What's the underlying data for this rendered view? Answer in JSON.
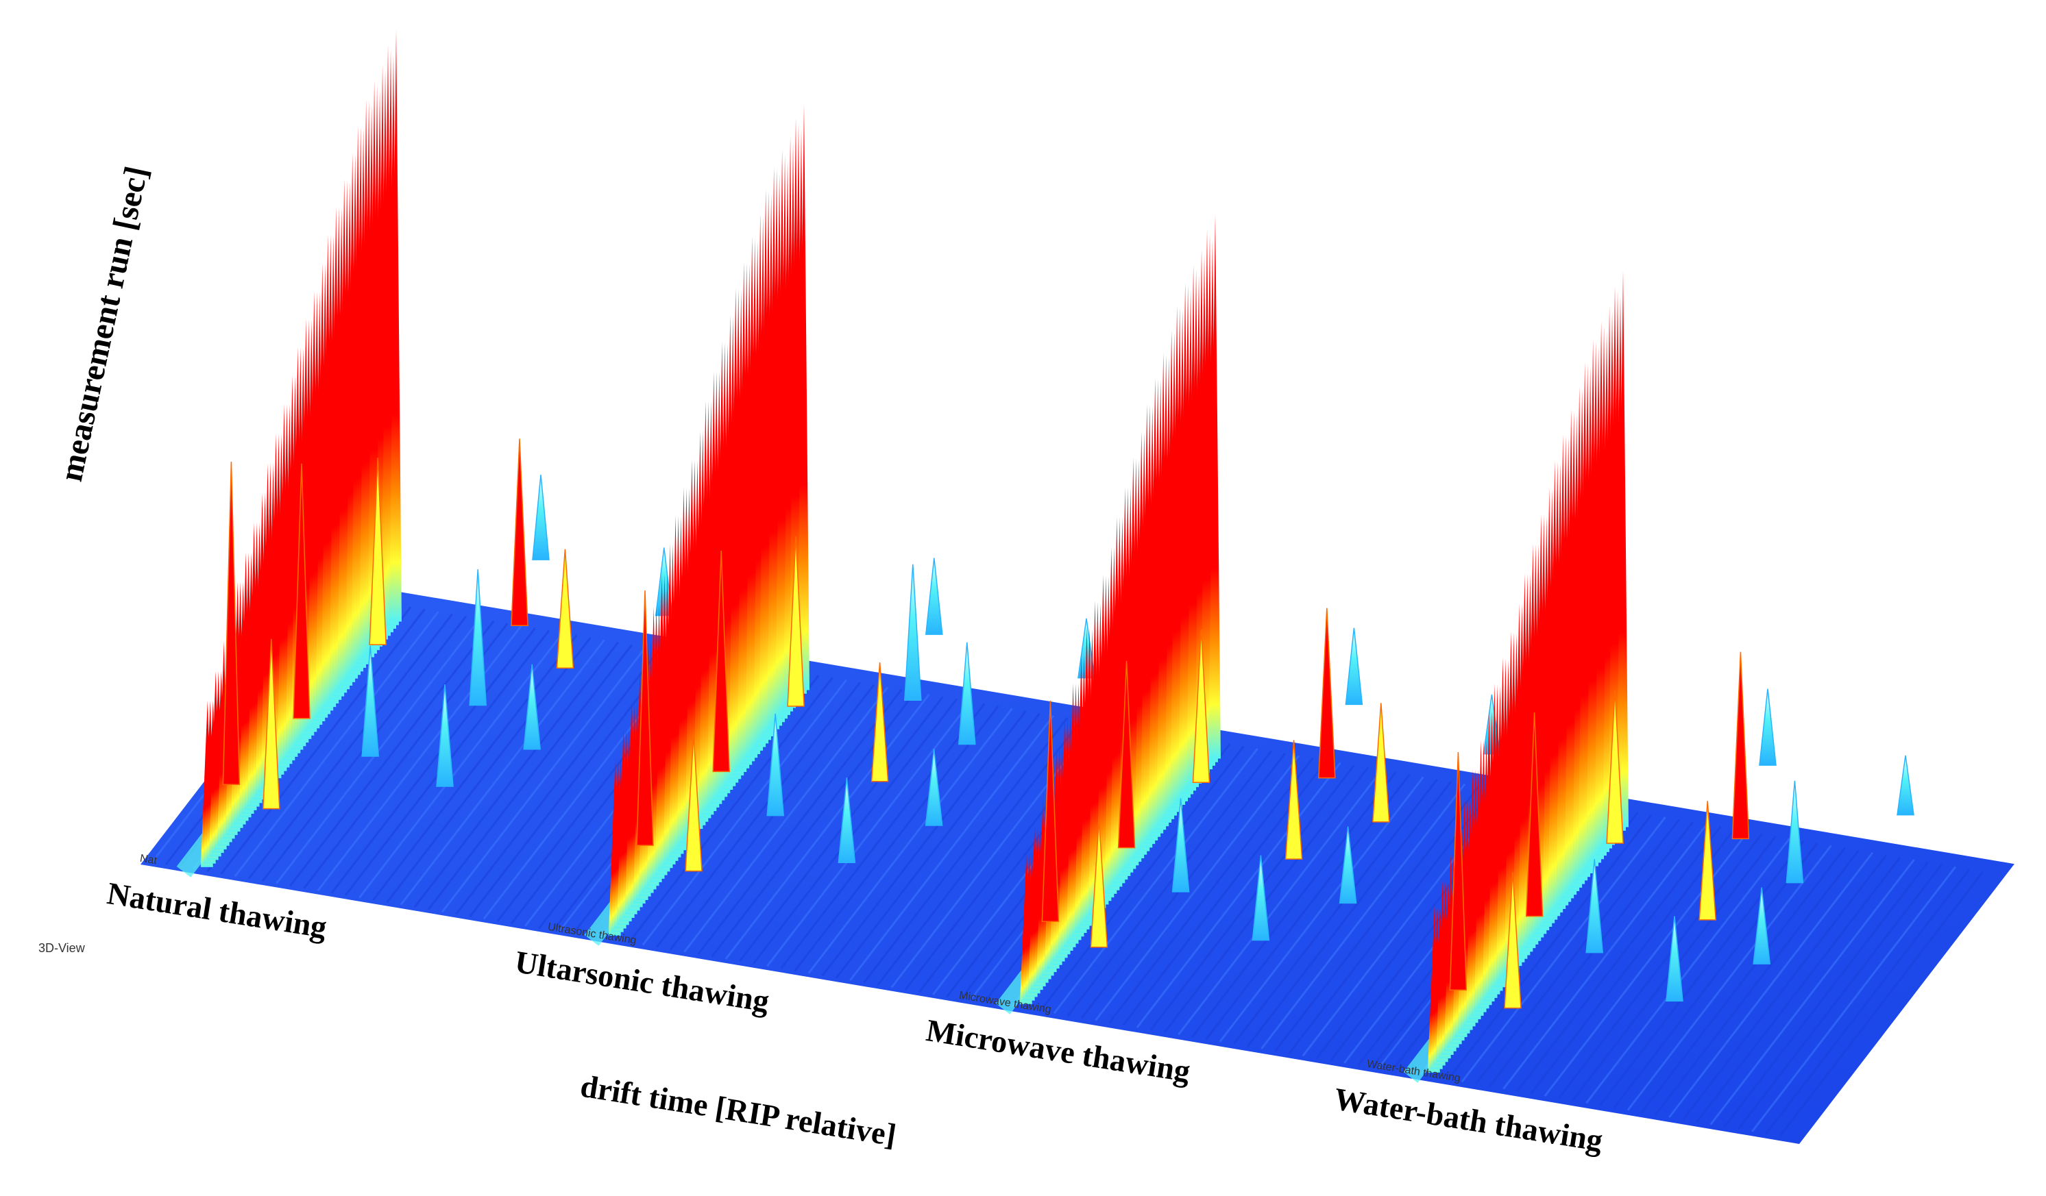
{
  "chart_data": {
    "type": "3d-surface",
    "view_label": "3D-View",
    "xlabel": "drift time [RIP relative]",
    "ylabel": "measurement run [sec]",
    "colors": {
      "base": "#1e4ff0",
      "low": "#28b4ff",
      "mid": "#54f2f6",
      "high": "#ffff33",
      "peak": "#ff0000"
    },
    "samples": [
      {
        "name": "Natural thawing",
        "small_label": "Nat",
        "rip_heights": [
          0.28,
          0.4,
          0.52,
          0.64,
          0.75,
          0.86,
          0.96,
          1.0
        ],
        "peaks": [
          {
            "drift": 0.06,
            "run": 0.22,
            "h": 0.38,
            "level": "peak"
          },
          {
            "drift": 0.1,
            "run": 0.4,
            "h": 0.3,
            "level": "peak"
          },
          {
            "drift": 0.14,
            "run": 0.6,
            "h": 0.22,
            "level": "high"
          },
          {
            "drift": 0.18,
            "run": 0.18,
            "h": 0.2,
            "level": "high"
          },
          {
            "drift": 0.4,
            "run": 0.7,
            "h": 0.22,
            "level": "peak"
          },
          {
            "drift": 0.44,
            "run": 0.5,
            "h": 0.16,
            "level": "mid"
          },
          {
            "drift": 0.5,
            "run": 0.3,
            "h": 0.12,
            "level": "mid"
          },
          {
            "drift": 0.56,
            "run": 0.62,
            "h": 0.14,
            "level": "high"
          },
          {
            "drift": 0.62,
            "run": 0.42,
            "h": 0.1,
            "level": "mid"
          },
          {
            "drift": 0.68,
            "run": 0.78,
            "h": 0.08,
            "level": "mid"
          },
          {
            "drift": 0.34,
            "run": 0.86,
            "h": 0.1,
            "level": "mid"
          },
          {
            "drift": 0.3,
            "run": 0.34,
            "h": 0.13,
            "level": "mid"
          }
        ]
      },
      {
        "name": "Ultarsonic thawing",
        "small_label": "Ultrasonic thawing",
        "rip_heights": [
          0.3,
          0.42,
          0.55,
          0.66,
          0.78,
          0.88,
          0.96,
          0.99
        ],
        "peaks": [
          {
            "drift": 0.06,
            "run": 0.24,
            "h": 0.3,
            "level": "peak"
          },
          {
            "drift": 0.1,
            "run": 0.44,
            "h": 0.26,
            "level": "peak"
          },
          {
            "drift": 0.15,
            "run": 0.62,
            "h": 0.2,
            "level": "high"
          },
          {
            "drift": 0.2,
            "run": 0.2,
            "h": 0.16,
            "level": "high"
          },
          {
            "drift": 0.38,
            "run": 0.68,
            "h": 0.16,
            "level": "mid"
          },
          {
            "drift": 0.44,
            "run": 0.48,
            "h": 0.14,
            "level": "high"
          },
          {
            "drift": 0.5,
            "run": 0.28,
            "h": 0.1,
            "level": "mid"
          },
          {
            "drift": 0.56,
            "run": 0.6,
            "h": 0.12,
            "level": "mid"
          },
          {
            "drift": 0.62,
            "run": 0.4,
            "h": 0.09,
            "level": "mid"
          },
          {
            "drift": 0.7,
            "run": 0.8,
            "h": 0.07,
            "level": "mid"
          },
          {
            "drift": 0.32,
            "run": 0.84,
            "h": 0.09,
            "level": "mid"
          },
          {
            "drift": 0.28,
            "run": 0.36,
            "h": 0.12,
            "level": "mid"
          }
        ]
      },
      {
        "name": "Microwave thawing",
        "small_label": "Microwave thawing",
        "rip_heights": [
          0.26,
          0.36,
          0.48,
          0.58,
          0.7,
          0.8,
          0.88,
          0.92
        ],
        "peaks": [
          {
            "drift": 0.06,
            "run": 0.22,
            "h": 0.26,
            "level": "peak"
          },
          {
            "drift": 0.1,
            "run": 0.42,
            "h": 0.22,
            "level": "peak"
          },
          {
            "drift": 0.15,
            "run": 0.6,
            "h": 0.18,
            "level": "high"
          },
          {
            "drift": 0.2,
            "run": 0.18,
            "h": 0.15,
            "level": "high"
          },
          {
            "drift": 0.4,
            "run": 0.66,
            "h": 0.2,
            "level": "peak"
          },
          {
            "drift": 0.46,
            "run": 0.46,
            "h": 0.14,
            "level": "high"
          },
          {
            "drift": 0.52,
            "run": 0.26,
            "h": 0.1,
            "level": "mid"
          },
          {
            "drift": 0.58,
            "run": 0.58,
            "h": 0.14,
            "level": "high"
          },
          {
            "drift": 0.64,
            "run": 0.38,
            "h": 0.09,
            "level": "mid"
          },
          {
            "drift": 0.7,
            "run": 0.78,
            "h": 0.07,
            "level": "mid"
          },
          {
            "drift": 0.34,
            "run": 0.84,
            "h": 0.09,
            "level": "mid"
          },
          {
            "drift": 0.28,
            "run": 0.34,
            "h": 0.11,
            "level": "mid"
          }
        ]
      },
      {
        "name": "Water-bath thawing",
        "small_label": "Water-bath thawing",
        "rip_heights": [
          0.28,
          0.38,
          0.5,
          0.6,
          0.72,
          0.82,
          0.9,
          0.94
        ],
        "peaks": [
          {
            "drift": 0.06,
            "run": 0.22,
            "h": 0.28,
            "level": "peak"
          },
          {
            "drift": 0.1,
            "run": 0.42,
            "h": 0.24,
            "level": "peak"
          },
          {
            "drift": 0.15,
            "run": 0.62,
            "h": 0.18,
            "level": "high"
          },
          {
            "drift": 0.2,
            "run": 0.2,
            "h": 0.16,
            "level": "high"
          },
          {
            "drift": 0.4,
            "run": 0.68,
            "h": 0.22,
            "level": "peak"
          },
          {
            "drift": 0.46,
            "run": 0.48,
            "h": 0.14,
            "level": "high"
          },
          {
            "drift": 0.52,
            "run": 0.28,
            "h": 0.1,
            "level": "mid"
          },
          {
            "drift": 0.58,
            "run": 0.6,
            "h": 0.12,
            "level": "mid"
          },
          {
            "drift": 0.64,
            "run": 0.4,
            "h": 0.09,
            "level": "mid"
          },
          {
            "drift": 0.7,
            "run": 0.8,
            "h": 0.07,
            "level": "mid"
          },
          {
            "drift": 0.34,
            "run": 0.86,
            "h": 0.09,
            "level": "mid"
          },
          {
            "drift": 0.28,
            "run": 0.36,
            "h": 0.11,
            "level": "mid"
          }
        ]
      }
    ]
  }
}
